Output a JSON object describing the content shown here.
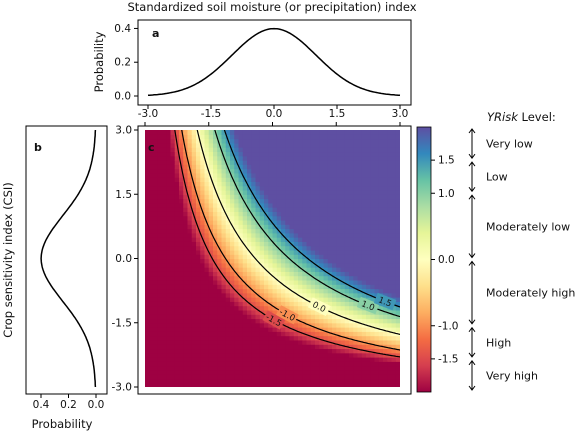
{
  "chart_data": [
    {
      "panel": "a",
      "type": "line",
      "title": "Standardized soil moisture (or precipitation) index",
      "ylabel": "Probability",
      "xlim": [
        -3.0,
        3.0
      ],
      "ylim": [
        0.0,
        0.45
      ],
      "xticks": [
        "-3.0",
        "-1.5",
        "0.0",
        "1.5",
        "3.0"
      ],
      "yticks": [
        "0.0",
        "0.2",
        "0.4"
      ],
      "series": [
        {
          "x": [
            -3.0,
            -2.5,
            -2.0,
            -1.5,
            -1.0,
            -0.5,
            0.0,
            0.5,
            1.0,
            1.5,
            2.0,
            2.5,
            3.0
          ],
          "y": [
            0.004,
            0.018,
            0.054,
            0.13,
            0.242,
            0.352,
            0.399,
            0.352,
            0.242,
            0.13,
            0.054,
            0.018,
            0.004
          ]
        }
      ]
    },
    {
      "panel": "b",
      "type": "line",
      "xlabel": "Probability",
      "xticks": [
        "0.4",
        "0.2",
        "0.0"
      ],
      "xlim": [
        0.45,
        0.0
      ],
      "ylim": [
        -3.0,
        3.0
      ],
      "series": [
        {
          "x": [
            0.004,
            0.018,
            0.054,
            0.13,
            0.242,
            0.352,
            0.399,
            0.352,
            0.242,
            0.13,
            0.054,
            0.018,
            0.004
          ],
          "y": [
            -3.0,
            -2.5,
            -2.0,
            -1.5,
            -1.0,
            -0.5,
            0.0,
            0.5,
            1.0,
            1.5,
            2.0,
            2.5,
            3.0
          ]
        }
      ]
    },
    {
      "panel": "c",
      "type": "heatmap",
      "ylabel": "Crop sensitivity index (CSI)",
      "xlim": [
        -3.0,
        3.0
      ],
      "ylim": [
        -3.0,
        3.0
      ],
      "yticks": [
        "3.0",
        "1.5",
        "0.0",
        "-1.5",
        "-3.0"
      ],
      "contour_levels": [
        {
          "level": -1.5,
          "label": "-1.5"
        },
        {
          "level": -1.0,
          "label": "-1.0"
        },
        {
          "level": 0.0,
          "label": "0.0"
        },
        {
          "level": 1.0,
          "label": "1.0"
        },
        {
          "level": 1.5,
          "label": "1.5"
        }
      ],
      "colorbar": {
        "range": [
          -2.0,
          2.0
        ],
        "ticks": [
          "1.5",
          "1.0",
          "0.0",
          "-1.0",
          "-1.5"
        ],
        "tick_values": [
          1.5,
          1.0,
          0.0,
          -1.0,
          -1.5
        ],
        "colormap": [
          "#9e0142",
          "#d53e4f",
          "#f46d43",
          "#fdae61",
          "#fee08b",
          "#ffffbf",
          "#e6f598",
          "#abdda4",
          "#66c2a5",
          "#3288bd",
          "#5e4fa2"
        ]
      },
      "risk_levels": {
        "title_italic": "YRisk",
        "title_rest": " Level:",
        "labels": [
          "Very low",
          "Low",
          "Moderately low",
          "Moderately high",
          "High",
          "Very high"
        ]
      }
    }
  ]
}
